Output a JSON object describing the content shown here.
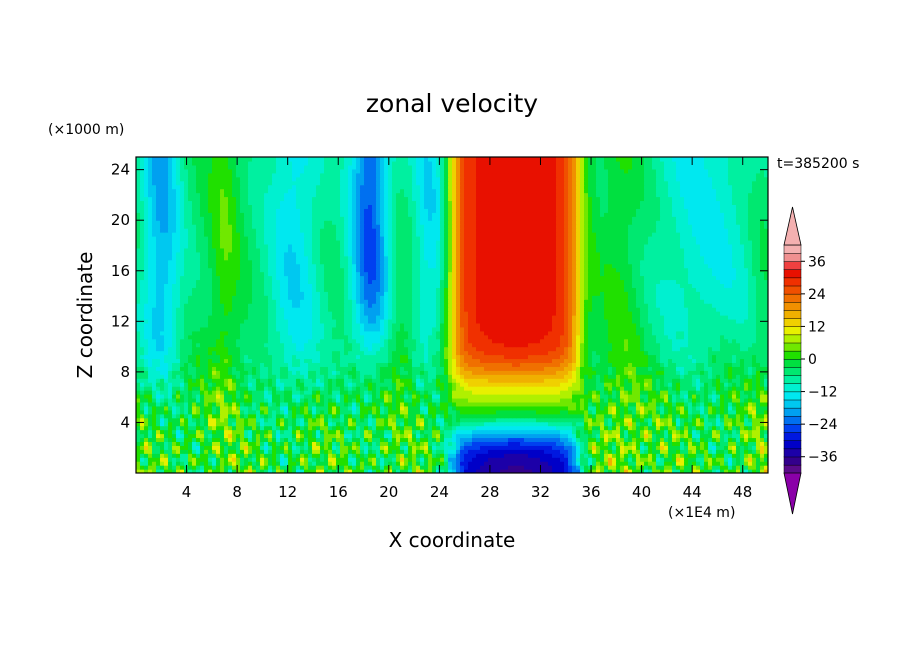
{
  "chart_data": {
    "type": "heatmap",
    "subtype": "filled-contour",
    "title": "zonal velocity",
    "time_label": "t=385200 s",
    "xlabel": "X coordinate",
    "ylabel": "Z coordinate",
    "x_unit": "(×1E4 m)",
    "y_unit": "(×1000 m)",
    "xlim": [
      0,
      50
    ],
    "ylim": [
      0,
      25
    ],
    "x_ticks": [
      4,
      8,
      12,
      16,
      20,
      24,
      28,
      32,
      36,
      40,
      44,
      48
    ],
    "y_ticks": [
      4,
      8,
      12,
      16,
      20,
      24
    ],
    "colorbar": {
      "levels": [
        -42,
        -39,
        -36,
        -33,
        -30,
        -27,
        -24,
        -21,
        -18,
        -15,
        -12,
        -9,
        -6,
        -3,
        0,
        3,
        6,
        9,
        12,
        15,
        18,
        21,
        24,
        27,
        30,
        33,
        36,
        39,
        42
      ],
      "colors": [
        "#5a0a8a",
        "#33008c",
        "#1c00a8",
        "#0000c8",
        "#0018e0",
        "#0040f0",
        "#0070f0",
        "#00a0f0",
        "#00c8f0",
        "#00e8f0",
        "#00f0d0",
        "#00f0a0",
        "#00e870",
        "#00e040",
        "#20e000",
        "#70e800",
        "#b0f000",
        "#e8f000",
        "#f0d000",
        "#f0b000",
        "#f09000",
        "#f07000",
        "#f05000",
        "#f03000",
        "#e81000",
        "#f04040",
        "#f09090",
        "#f4b0b0"
      ],
      "under_color": "#8a00a8",
      "over_color": "#f4b0b0",
      "tick_labels": [
        "36",
        "24",
        "12",
        "0",
        "−12",
        "−24",
        "−36"
      ],
      "tick_values": [
        36,
        24,
        12,
        0,
        -12,
        -24,
        -36
      ]
    },
    "field_description": {
      "jet_core": {
        "x_range": [
          25,
          35
        ],
        "z_range": [
          6,
          25
        ],
        "value_max": 33
      },
      "low_level_reversal": {
        "x_range": [
          26,
          35
        ],
        "z_range": [
          0,
          3
        ],
        "value_min": -38
      },
      "westward_bands": [
        {
          "x_center": 2.0,
          "z_range": [
            8,
            25
          ],
          "value": -18
        },
        {
          "x_center": 18.5,
          "z_range": [
            10,
            25
          ],
          "value": -24
        },
        {
          "x_center": 23.5,
          "z_range": [
            10,
            25
          ],
          "value": -15
        }
      ]
    }
  }
}
